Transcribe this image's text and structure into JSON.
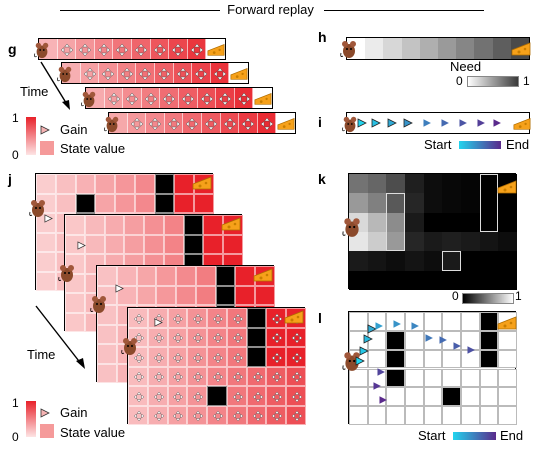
{
  "figure_title": "Forward replay",
  "panels": {
    "g": {
      "label": "g",
      "time_label": "Time",
      "legend": {
        "gain": "Gain",
        "state_value": "State value",
        "scale_max": "1",
        "scale_min": "0"
      }
    },
    "h": {
      "label": "h",
      "colorbar_title": "Need",
      "scale_min": "0",
      "scale_max": "1"
    },
    "i": {
      "label": "i",
      "start_label": "Start",
      "end_label": "End"
    },
    "j": {
      "label": "j",
      "time_label": "Time",
      "legend": {
        "gain": "Gain",
        "state_value": "State value",
        "scale_max": "1",
        "scale_min": "0"
      }
    },
    "k": {
      "label": "k",
      "scale_min": "0",
      "scale_max": "1"
    },
    "l": {
      "label": "l",
      "start_label": "Start",
      "end_label": "End"
    }
  },
  "colors": {
    "value_high": "#e8212a",
    "value_low": "#fde4e4",
    "need_high": "#4a4a4a",
    "need_low": "#ffffff",
    "path_start": "#22d4ee",
    "path_end": "#5a2a8c",
    "wall": "#000000",
    "cheese": "#f6a11a"
  },
  "icons": [
    "rat-icon",
    "cheese-icon",
    "arrow-cross-icon",
    "gain-triangle-icon"
  ]
}
